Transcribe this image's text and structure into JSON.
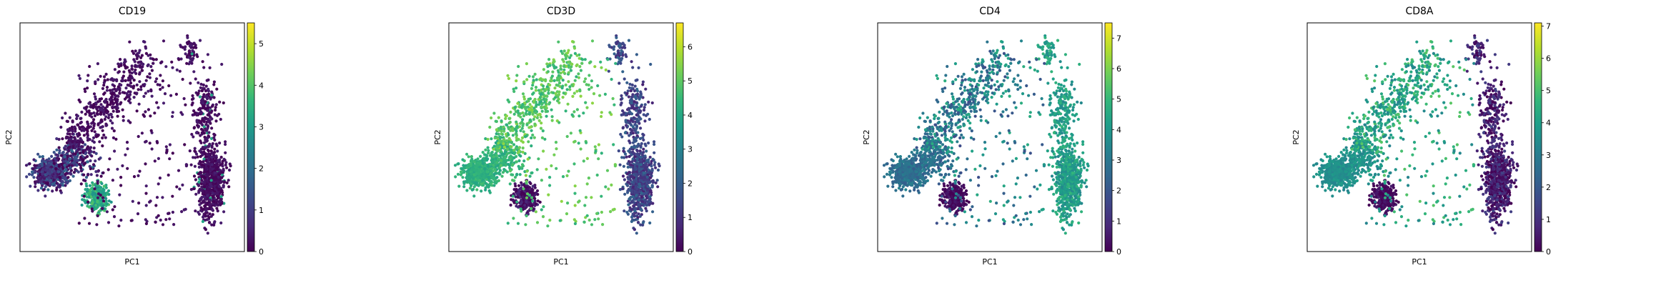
{
  "figure": {
    "type": "scatter",
    "description_free": true
  },
  "chart_data": [
    {
      "type": "scatter",
      "title": "CD19",
      "xlabel": "PC1",
      "ylabel": "PC2",
      "colorbar": {
        "min": 0,
        "max": 5.5,
        "ticks": [
          "0",
          "1",
          "2",
          "3",
          "4",
          "5"
        ],
        "colormap": "viridis"
      },
      "clusters": [
        {
          "name": "left-dense",
          "level": 0.9,
          "spread": 0.18
        },
        {
          "name": "mid-cluster",
          "level": 3.3,
          "spread": 0.12
        },
        {
          "name": "right-column",
          "level": 0.2,
          "spread": 0.05
        },
        {
          "name": "diagonal-arm",
          "level": 0.2,
          "spread": 0.05
        }
      ]
    },
    {
      "type": "scatter",
      "title": "CD3D",
      "xlabel": "PC1",
      "ylabel": "PC2",
      "colorbar": {
        "min": 0,
        "max": 6.7,
        "ticks": [
          "0",
          "1",
          "2",
          "3",
          "4",
          "5",
          "6"
        ],
        "colormap": "viridis"
      },
      "clusters": [
        {
          "name": "left-dense",
          "level": 4.3,
          "spread": 0.06
        },
        {
          "name": "mid-cluster",
          "level": 0.3,
          "spread": 0.08
        },
        {
          "name": "right-column",
          "level": 1.4,
          "spread": 0.12
        },
        {
          "name": "diagonal-arm",
          "level": 4.9,
          "spread": 0.1
        }
      ]
    },
    {
      "type": "scatter",
      "title": "CD4",
      "xlabel": "PC1",
      "ylabel": "PC2",
      "colorbar": {
        "min": 0,
        "max": 7.5,
        "ticks": [
          "0",
          "1",
          "2",
          "3",
          "4",
          "5",
          "6",
          "7"
        ],
        "colormap": "viridis"
      },
      "clusters": [
        {
          "name": "left-dense",
          "level": 2.8,
          "spread": 0.08
        },
        {
          "name": "mid-cluster",
          "level": 0.2,
          "spread": 0.05
        },
        {
          "name": "right-column",
          "level": 4.2,
          "spread": 0.1
        },
        {
          "name": "diagonal-arm",
          "level": 3.2,
          "spread": 0.2
        }
      ]
    },
    {
      "type": "scatter",
      "title": "CD8A",
      "xlabel": "PC1",
      "ylabel": "PC2",
      "colorbar": {
        "min": 0,
        "max": 7.1,
        "ticks": [
          "0",
          "1",
          "2",
          "3",
          "4",
          "5",
          "6",
          "7"
        ],
        "colormap": "viridis"
      },
      "clusters": [
        {
          "name": "left-dense",
          "level": 3.6,
          "spread": 0.06
        },
        {
          "name": "mid-cluster",
          "level": 0.2,
          "spread": 0.05
        },
        {
          "name": "right-column",
          "level": 0.6,
          "spread": 0.12
        },
        {
          "name": "diagonal-arm",
          "level": 4.2,
          "spread": 0.15
        }
      ]
    }
  ]
}
